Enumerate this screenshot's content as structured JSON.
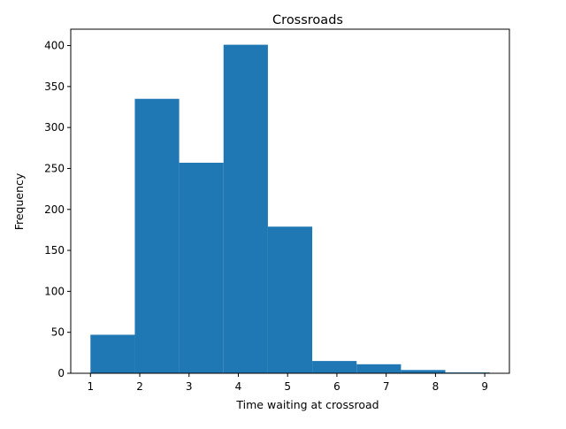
{
  "chart_data": {
    "type": "bar",
    "title": "Crossroads",
    "xlabel": "Time waiting at crossroad",
    "ylabel": "Frequency",
    "bins": [
      {
        "x0": 1.0,
        "x1": 1.9,
        "count": 47
      },
      {
        "x0": 1.9,
        "x1": 2.8,
        "count": 335
      },
      {
        "x0": 2.8,
        "x1": 3.7,
        "count": 257
      },
      {
        "x0": 3.7,
        "x1": 4.6,
        "count": 401
      },
      {
        "x0": 4.6,
        "x1": 5.5,
        "count": 179
      },
      {
        "x0": 5.5,
        "x1": 6.4,
        "count": 15
      },
      {
        "x0": 6.4,
        "x1": 7.3,
        "count": 11
      },
      {
        "x0": 7.3,
        "x1": 8.2,
        "count": 4
      },
      {
        "x0": 8.2,
        "x1": 9.1,
        "count": 1
      }
    ],
    "xlim": [
      0.6,
      9.5
    ],
    "ylim": [
      0,
      420
    ],
    "xticks": [
      1,
      2,
      3,
      4,
      5,
      6,
      7,
      8,
      9
    ],
    "yticks": [
      0,
      50,
      100,
      150,
      200,
      250,
      300,
      350,
      400
    ],
    "bar_color": "#1f77b4",
    "grid": false,
    "legend": "none"
  }
}
